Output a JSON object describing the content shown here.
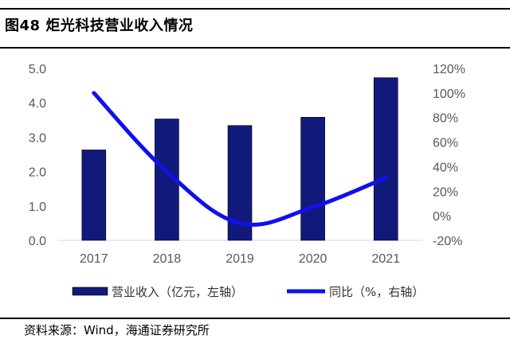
{
  "figure": {
    "title": "图48 炬光科技营业收入情况",
    "source": "资料来源：Wind，海通证券研究所"
  },
  "colors": {
    "bar": "#111a7a",
    "line": "#1010ee",
    "tick_text": "#595959",
    "axis": "#d9d9d9"
  },
  "chart_data": {
    "type": "bar",
    "categories": [
      "2017",
      "2018",
      "2019",
      "2020",
      "2021"
    ],
    "series": [
      {
        "name": "营业收入（亿元，左轴）",
        "type": "bar",
        "axis": "left",
        "values": [
          2.63,
          3.53,
          3.34,
          3.58,
          4.73
        ]
      },
      {
        "name": "同比（%，右轴）",
        "type": "line",
        "axis": "right",
        "values": [
          100,
          36,
          -6,
          7,
          31
        ]
      }
    ],
    "y_left": {
      "range": [
        0,
        5
      ],
      "ticks": [
        "0.0",
        "1.0",
        "2.0",
        "3.0",
        "4.0",
        "5.0"
      ]
    },
    "y_right": {
      "range": [
        -20,
        120
      ],
      "ticks": [
        "-20%",
        "0%",
        "20%",
        "40%",
        "60%",
        "80%",
        "100%",
        "120%"
      ]
    },
    "grid": false,
    "legend": "bottom"
  }
}
